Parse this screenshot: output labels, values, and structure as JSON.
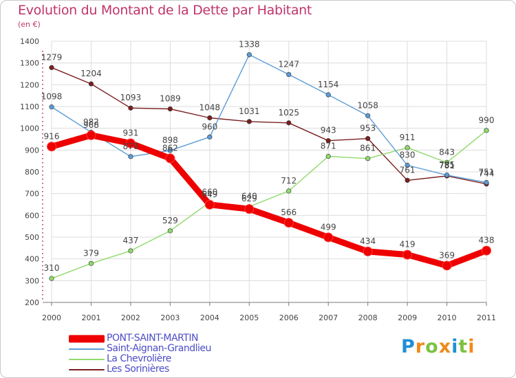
{
  "title": "Evolution du Montant de la Dette par Habitant",
  "subtitle": "(en €)",
  "logo": {
    "letters": [
      "P",
      "r",
      "o",
      "x",
      "i",
      "t",
      "i"
    ],
    "colors": [
      "#1f8fd8",
      "#f08a1a",
      "#7cc242",
      "#f08a1a",
      "#1f8fd8",
      "#7cc242",
      "#f08a1a"
    ]
  },
  "chart_data": {
    "type": "line",
    "categories": [
      "2000",
      "2001",
      "2002",
      "2003",
      "2004",
      "2005",
      "2006",
      "2007",
      "2008",
      "2009",
      "2010",
      "2011"
    ],
    "y_ticks": [
      "200",
      "300",
      "400",
      "500",
      "600",
      "700",
      "800",
      "900",
      "1000",
      "1100",
      "1200",
      "1300",
      "1400"
    ],
    "ylim": [
      200,
      1400
    ],
    "grid": true,
    "legend_position": "bottom-left",
    "series": [
      {
        "name": "Les Sorinières",
        "color": "#7a1f1f",
        "values": [
          1279,
          1204,
          1093,
          1089,
          1048,
          1031,
          1025,
          943,
          953,
          761,
          781,
          744
        ]
      },
      {
        "name": "La Chevrolière",
        "color": "#8fd96a",
        "values": [
          310,
          379,
          437,
          529,
          660,
          640,
          712,
          871,
          861,
          911,
          843,
          990
        ]
      },
      {
        "name": "Saint-Aignan-Grandlieu",
        "color": "#5b9bd5",
        "values": [
          1098,
          982,
          870,
          898,
          960,
          1338,
          1247,
          1154,
          1058,
          830,
          785,
          751
        ]
      },
      {
        "name": "PONT-SAINT-MARTIN",
        "color": "#ee0000",
        "values": [
          916,
          968,
          931,
          862,
          649,
          629,
          566,
          499,
          434,
          419,
          369,
          438
        ]
      }
    ]
  }
}
